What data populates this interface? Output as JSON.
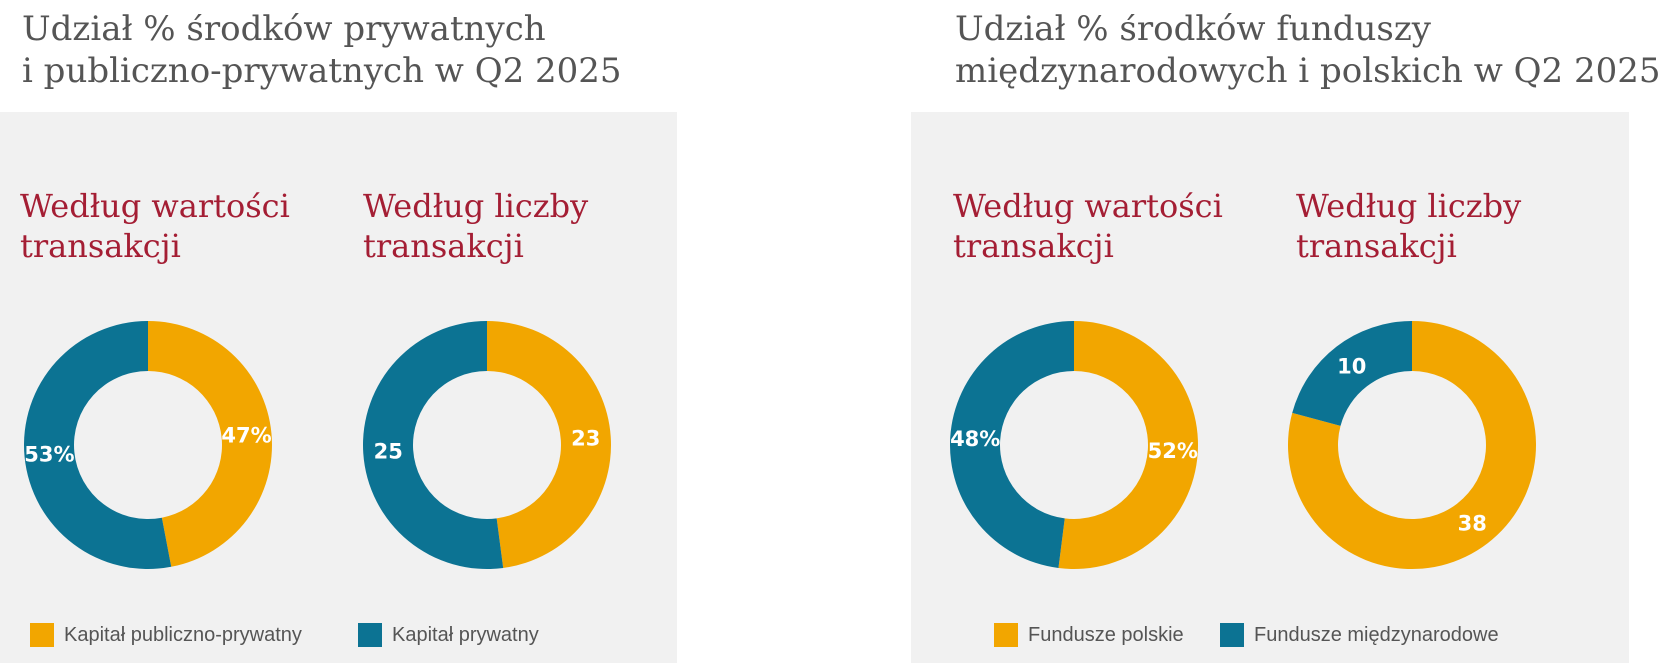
{
  "colors": {
    "orange": "#f2a600",
    "teal": "#0c7393"
  },
  "panels": [
    {
      "title": [
        "Udział % środków prywatnych",
        "i publiczno-prywatnych w Q2 2025"
      ],
      "legend": [
        {
          "label": "Kapitał publiczno-prywatny",
          "color": "#f2a600"
        },
        {
          "label": "Kapitał prywatny",
          "color": "#0c7393"
        }
      ]
    },
    {
      "title": [
        "Udział % środków funduszy",
        "międzynarodowych i polskich w Q2 2025"
      ],
      "legend": [
        {
          "label": "Fundusze polskie",
          "color": "#f2a600"
        },
        {
          "label": "Fundusze międzynarodowe",
          "color": "#0c7393"
        }
      ]
    }
  ],
  "chart_data": [
    {
      "type": "pie",
      "title": [
        "Według wartości",
        "transakcji"
      ],
      "slices": [
        {
          "name": "Kapitał publiczno-prywatny",
          "value": 47,
          "label": "47%",
          "color": "#f2a600"
        },
        {
          "name": "Kapitał prywatny",
          "value": 53,
          "label": "53%",
          "color": "#0c7393"
        }
      ]
    },
    {
      "type": "pie",
      "title": [
        "Według liczby",
        "transakcji"
      ],
      "slices": [
        {
          "name": "Kapitał publiczno-prywatny",
          "value": 23,
          "label": "23",
          "color": "#f2a600"
        },
        {
          "name": "Kapitał prywatny",
          "value": 25,
          "label": "25",
          "color": "#0c7393"
        }
      ]
    },
    {
      "type": "pie",
      "title": [
        "Według wartości",
        "transakcji"
      ],
      "slices": [
        {
          "name": "Fundusze polskie",
          "value": 52,
          "label": "52%",
          "color": "#f2a600"
        },
        {
          "name": "Fundusze międzynarodowe",
          "value": 48,
          "label": "48%",
          "color": "#0c7393"
        }
      ]
    },
    {
      "type": "pie",
      "title": [
        "Według liczby",
        "transakcji"
      ],
      "slices": [
        {
          "name": "Fundusze polskie",
          "value": 38,
          "label": "38",
          "color": "#f2a600"
        },
        {
          "name": "Fundusze międzynarodowe",
          "value": 10,
          "label": "10",
          "color": "#0c7393"
        }
      ]
    }
  ]
}
